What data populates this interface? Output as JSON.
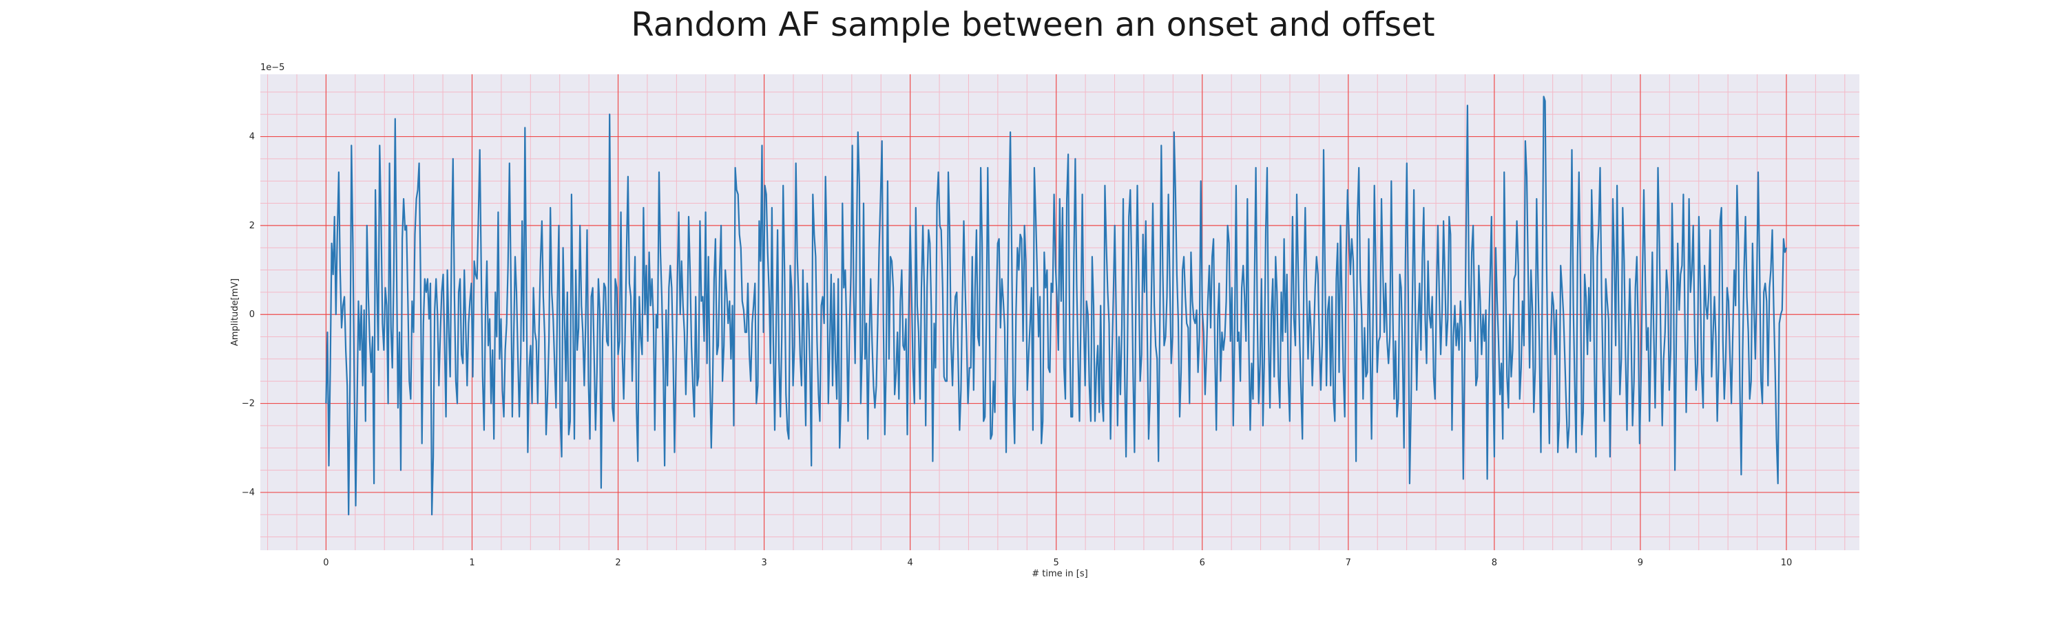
{
  "chart_data": {
    "type": "line",
    "title": "Random AF sample between an onset and offset",
    "xlabel": "# time in [s]",
    "ylabel": "Amplitude[mV]",
    "y_offset_label": "1e−5",
    "xlim": [
      -0.45,
      10.5
    ],
    "ylim": [
      -5.3,
      5.4
    ],
    "xticks": [
      "0",
      "1",
      "2",
      "3",
      "4",
      "5",
      "6",
      "7",
      "8",
      "9",
      "10"
    ],
    "yticks": [
      "−4",
      "−2",
      "0",
      "2",
      "4"
    ],
    "ytick_values": [
      -4,
      -2,
      0,
      2,
      4
    ],
    "grid": true,
    "sample_rate_hz": 100,
    "x_start": 0,
    "y_scale": "1e-5",
    "series": [
      {
        "color": "#2a77b4",
        "values": [
          -2.0,
          -0.4,
          -3.4,
          -1.2,
          1.6,
          0.9,
          2.2,
          0.0,
          1.8,
          3.2,
          1.0,
          -0.3,
          0.2,
          0.4,
          -0.8,
          -1.6,
          -4.5,
          -1.4,
          3.8,
          1.6,
          -1.5,
          -4.3,
          -2.0,
          0.3,
          -0.8,
          0.2,
          -1.6,
          0.1,
          -2.4,
          2.0,
          0.4,
          -0.6,
          -1.3,
          -0.5,
          -3.8,
          2.8,
          0.7,
          -0.8,
          3.8,
          2.2,
          -0.2,
          -0.8,
          0.6,
          0.2,
          -2.0,
          3.4,
          -0.3,
          -1.2,
          0.9,
          4.4,
          1.0,
          -2.1,
          -0.4,
          -3.5,
          1.7,
          2.6,
          1.9,
          2.0,
          0.3,
          -1.5,
          -1.9,
          0.3,
          -0.4,
          1.8,
          2.6,
          2.8,
          3.4,
          0.9,
          -2.9,
          -0.2,
          0.8,
          0.5,
          0.8,
          -0.1,
          0.7,
          -4.5,
          -3.2,
          0.1,
          0.8,
          0.0,
          -1.6,
          -0.4,
          0.5,
          0.9,
          -0.6,
          -2.3,
          1.0,
          -0.4,
          -1.4,
          1.7,
          3.5,
          0.4,
          -1.5,
          -2.0,
          0.5,
          0.8,
          -0.9,
          -1.1,
          1.0,
          -0.3,
          -1.6,
          -0.2,
          0.3,
          0.7,
          -1.4,
          1.2,
          0.9,
          0.8,
          2.2,
          3.7,
          1.0,
          -1.4,
          -2.6,
          0.0,
          1.2,
          -0.7,
          -0.1,
          -2.0,
          -0.8,
          -2.8,
          0.5,
          -0.5,
          2.3,
          -1.0,
          -0.1,
          -1.7,
          -2.3,
          -0.8,
          -0.2,
          1.1,
          3.4,
          0.9,
          -2.3,
          -0.6,
          1.3,
          0.5,
          -1.0,
          -2.3,
          -0.9,
          2.1,
          -0.6,
          4.2,
          0.6,
          -3.1,
          -1.2,
          -0.7,
          -2.0,
          0.6,
          -0.4,
          -0.6,
          -2.0,
          -0.3,
          1.2,
          2.1,
          0.4,
          -0.5,
          -2.7,
          -1.8,
          -0.6,
          2.4,
          0.5,
          -0.1,
          -1.1,
          -2.1,
          0.3,
          2.0,
          -2.3,
          -3.2,
          1.5,
          -0.1,
          -1.5,
          0.5,
          -2.7,
          -2.4,
          2.7,
          0.1,
          -2.8,
          1.0,
          -0.8,
          -0.3,
          2.0,
          0.2,
          -0.4,
          -1.6,
          -0.2,
          1.9,
          -1.5,
          -2.8,
          0.4,
          0.6,
          -0.9,
          -2.6,
          -1.3,
          0.8,
          0.1,
          -3.9,
          -0.6,
          0.7,
          0.6,
          -0.6,
          -0.7,
          4.5,
          0.3,
          -2.1,
          -2.4,
          0.8,
          0.6,
          -0.9,
          -0.6,
          2.3,
          -0.9,
          -1.9,
          -0.4,
          1.4,
          3.1,
          0.7,
          0.4,
          -1.5,
          -0.1,
          1.3,
          -2.1,
          -3.3,
          0.4,
          -0.5,
          -0.9,
          2.4,
          0.0,
          1.1,
          -0.6,
          1.4,
          0.2,
          0.8,
          -0.1,
          -2.6,
          0.0,
          -0.3,
          3.2,
          1.4,
          0.4,
          -1.2,
          -3.4,
          0.1,
          -1.6,
          0.6,
          1.1,
          0.6,
          -0.9,
          -3.1,
          -1.2,
          0.8,
          2.3,
          0.0,
          1.2,
          0.2,
          -0.4,
          -1.8,
          -0.4,
          2.2,
          1.0,
          -0.7,
          -1.6,
          -2.3,
          0.4,
          -1.6,
          -1.4,
          2.1,
          0.3,
          0.4,
          -0.6,
          2.3,
          -1.1,
          1.3,
          -1.3,
          -3.0,
          -1.6,
          0.8,
          1.7,
          -0.9,
          -0.7,
          1.0,
          2.0,
          -1.5,
          -0.7,
          1.0,
          0.5,
          -0.2,
          0.3,
          -1.0,
          0.2,
          -2.5,
          3.3,
          2.8,
          2.7,
          1.8,
          1.5,
          0.3,
          0.1,
          -0.4,
          -0.4,
          0.7,
          -0.9,
          -1.5,
          -0.2,
          0.2,
          0.7,
          -2.0,
          -1.6,
          2.1,
          1.2,
          3.8,
          -0.4,
          2.9,
          2.7,
          1.4,
          0.5,
          -1.1,
          2.4,
          -0.6,
          -2.6,
          -0.3,
          1.9,
          -1.0,
          -2.3,
          -0.5,
          2.9,
          0.9,
          -1.8,
          -2.6,
          -2.8,
          1.1,
          0.6,
          -1.6,
          -0.7,
          3.4,
          1.3,
          0.3,
          -0.9,
          -1.6,
          1.0,
          -1.0,
          -2.5,
          0.7,
          0.0,
          -1.2,
          -3.4,
          2.7,
          1.8,
          1.3,
          -0.6,
          -1.8,
          -2.4,
          0.2,
          0.4,
          -0.2,
          3.1,
          1.4,
          -2.0,
          -0.6,
          0.9,
          -1.6,
          0.7,
          -1.0,
          -1.9,
          0.8,
          -3.0,
          -1.9,
          2.5,
          0.6,
          1.0,
          -0.3,
          -2.4,
          -0.4,
          0.9,
          3.8,
          0.4,
          -1.1,
          1.7,
          4.1,
          2.9,
          -2.0,
          -0.8,
          2.5,
          -1.0,
          -0.2,
          -2.8,
          -0.6,
          0.8,
          -0.6,
          -1.6,
          -2.1,
          -1.6,
          -0.2,
          1.5,
          2.6,
          3.9,
          -0.1,
          -2.7,
          -1.1,
          3.0,
          -1.0,
          1.3,
          1.2,
          0.6,
          -1.8,
          -1.3,
          -0.4,
          -1.9,
          0.3,
          1.0,
          -0.7,
          -0.8,
          -0.1,
          -2.7,
          0.0,
          2.0,
          0.5,
          -1.2,
          -2.0,
          2.4,
          0.2,
          -0.4,
          -1.9,
          0.6,
          2.0,
          0.6,
          -2.5,
          0.6,
          1.9,
          1.6,
          0.1,
          -3.3,
          -0.2,
          -1.2,
          2.5,
          3.2,
          2.0,
          1.9,
          0.6,
          -1.4,
          -1.5,
          -1.5,
          3.2,
          1.9,
          -0.7,
          -1.6,
          -0.3,
          0.4,
          0.5,
          -1.0,
          -2.6,
          -1.7,
          0.4,
          2.1,
          0.6,
          -0.6,
          -2.0,
          -1.2,
          -1.2,
          1.3,
          -1.7,
          0.6,
          1.9,
          -0.5,
          -0.7,
          3.3,
          1.6,
          -2.4,
          -2.3,
          -0.1,
          3.3,
          0.5,
          -2.8,
          -2.7,
          -1.5,
          -2.2,
          0.1,
          1.6,
          1.7,
          -0.3,
          0.8,
          0.3,
          -0.3,
          -3.1,
          -0.6,
          2.4,
          4.1,
          1.3,
          -1.8,
          -2.9,
          0.0,
          1.5,
          1.0,
          1.8,
          1.7,
          -0.6,
          2.0,
          1.2,
          -1.7,
          -0.9,
          -0.2,
          0.6,
          -2.6,
          3.3,
          2.2,
          1.0,
          -0.5,
          0.4,
          -2.9,
          -2.4,
          1.4,
          0.6,
          1.0,
          -1.2,
          -1.3,
          0.7,
          0.5,
          2.7,
          1.1,
          0.4,
          -0.8,
          2.6,
          0.3,
          2.4,
          -1.2,
          -1.9,
          2.6,
          3.6,
          -0.3,
          -2.3,
          -2.3,
          1.2,
          3.5,
          0.7,
          -1.0,
          -2.4,
          0.0,
          2.7,
          -0.2,
          -1.6,
          0.3,
          0.0,
          -1.6,
          -2.4,
          1.3,
          0.2,
          -2.4,
          -1.2,
          -0.7,
          -2.2,
          0.2,
          -1.9,
          -2.4,
          2.9,
          1.6,
          0.5,
          -0.2,
          -2.8,
          -1.0,
          0.4,
          2.0,
          0.0,
          -2.5,
          -0.5,
          -1.8,
          -0.3,
          2.6,
          -1.3,
          -3.2,
          -0.7,
          2.2,
          2.8,
          1.0,
          -1.4,
          -3.1,
          0.5,
          2.9,
          0.7,
          -1.5,
          -0.9,
          1.8,
          0.5,
          2.1,
          -0.3,
          -2.8,
          -1.9,
          0.5,
          2.5,
          0.2,
          -0.7,
          -1.0,
          -3.3,
          0.0,
          3.8,
          1.0,
          -0.7,
          -0.5,
          0.4,
          2.7,
          0.8,
          -1.1,
          -0.5,
          4.1,
          2.8,
          0.9,
          -0.1,
          -2.3,
          -1.3,
          1.0,
          1.3,
          0.4,
          -0.2,
          -0.3,
          -2.0,
          1.4,
          0.3,
          -0.1,
          -0.2,
          0.1,
          -1.3,
          -0.5,
          3.0,
          0.1,
          -0.4,
          -1.8,
          -0.9,
          0.3,
          1.1,
          -0.3,
          1.3,
          1.7,
          -0.9,
          -2.6,
          -0.1,
          0.7,
          -1.5,
          -0.4,
          -0.8,
          -0.5,
          0.3,
          2.0,
          1.6,
          -0.6,
          0.6,
          -2.5,
          -0.3,
          2.9,
          -0.6,
          -0.4,
          -1.5,
          0.6,
          1.1,
          0.4,
          -0.6,
          2.6,
          -0.7,
          -2.6,
          -1.1,
          -1.9,
          0.7,
          3.3,
          0.0,
          -2.0,
          -1.1,
          0.8,
          -2.5,
          -1.0,
          1.9,
          3.3,
          -0.5,
          -2.1,
          0.0,
          0.8,
          -1.4,
          1.3,
          0.5,
          -1.4,
          -2.1,
          0.5,
          -0.6,
          1.7,
          -0.4,
          0.9,
          -1.4,
          -2.4,
          -0.1,
          2.2,
          -0.1,
          -0.7,
          2.7,
          1.0,
          -0.5,
          -1.7,
          -2.8,
          0.7,
          2.4,
          0.4,
          -1.0,
          0.3,
          -0.3,
          -1.6,
          -0.6,
          0.6,
          1.3,
          0.9,
          -0.6,
          -1.7,
          -0.7,
          3.7,
          1.0,
          -1.6,
          0.1,
          0.4,
          -1.6,
          0.4,
          -1.9,
          -2.4,
          0.8,
          1.6,
          -1.3,
          2.0,
          0.3,
          -1.3,
          -2.3,
          1.3,
          2.8,
          1.8,
          0.9,
          1.7,
          1.2,
          -0.2,
          -3.3,
          2.2,
          3.3,
          0.8,
          0.0,
          -1.9,
          -0.3,
          -1.4,
          -1.3,
          1.7,
          -0.7,
          -2.8,
          -0.1,
          2.9,
          1.0,
          -1.3,
          -0.6,
          -0.5,
          2.6,
          1.0,
          -0.4,
          0.7,
          -0.6,
          -1.1,
          -0.5,
          3.0,
          0.2,
          -1.9,
          -0.6,
          -2.3,
          -1.9,
          0.9,
          0.6,
          -0.9,
          -3.0,
          1.2,
          3.4,
          0.4,
          -3.8,
          -2.0,
          0.4,
          2.8,
          0.1,
          -1.7,
          -0.2,
          0.7,
          -0.8,
          1.3,
          2.4,
          -0.1,
          -1.1,
          1.2,
          0.0,
          -0.3,
          0.4,
          -1.4,
          -1.9,
          0.5,
          2.0,
          0.4,
          -0.9,
          0.1,
          2.1,
          0.8,
          -0.7,
          -0.1,
          2.2,
          1.8,
          -2.6,
          -0.5,
          0.2,
          -0.7,
          -0.2,
          -0.8,
          0.3,
          -0.3,
          -3.7,
          -1.0,
          1.9,
          4.7,
          0.7,
          -0.6,
          1.4,
          2.0,
          0.1,
          -1.6,
          -1.4,
          1.1,
          0.3,
          -0.9,
          0.0,
          -0.6,
          0.1,
          -3.7,
          -0.4,
          0.8,
          2.2,
          -1.1,
          -3.2,
          1.5,
          0.3,
          -0.6,
          -1.8,
          -1.1,
          -2.8,
          3.2,
          0.6,
          -1.4,
          -2.1,
          0.0,
          -1.4,
          -0.8,
          0.8,
          0.9,
          2.1,
          1.1,
          -1.9,
          -1.2,
          0.3,
          -0.7,
          3.9,
          3.1,
          0.9,
          -1.2,
          1.0,
          0.1,
          -2.2,
          -1.2,
          2.6,
          0.7,
          -0.8,
          -3.1,
          0.5,
          4.9,
          4.8,
          1.2,
          -1.1,
          -2.9,
          -0.6,
          0.5,
          0.2,
          -0.9,
          0.1,
          -3.1,
          -2.4,
          1.1,
          0.6,
          0.0,
          -1.0,
          -2.1,
          -3.0,
          -2.5,
          0.8,
          3.7,
          0.2,
          -1.5,
          -3.1,
          1.3,
          3.2,
          1.1,
          -2.7,
          -2.2,
          0.9,
          0.4,
          -0.9,
          0.6,
          -0.6,
          2.8,
          1.4,
          -1.3,
          -3.2,
          1.3,
          2.0,
          3.3,
          0.5,
          -1.2,
          -2.4,
          0.8,
          0.3,
          -0.1,
          -3.2,
          -1.2,
          2.6,
          1.3,
          -0.7,
          2.9,
          0.3,
          -1.8,
          -1.0,
          2.4,
          1.2,
          -0.9,
          -2.6,
          -0.5,
          0.8,
          -0.5,
          -2.5,
          -1.5,
          0.6,
          1.3,
          -0.3,
          -2.9,
          -1.4,
          0.9,
          2.8,
          0.8,
          -0.8,
          -0.3,
          -2.4,
          -0.4,
          1.4,
          -0.4,
          -2.1,
          0.0,
          3.3,
          1.6,
          -0.6,
          -2.5,
          -1.0,
          -0.4,
          1.0,
          0.5,
          -1.7,
          -0.8,
          2.5,
          0.7,
          -3.5,
          -0.4,
          1.6,
          0.1,
          0.9,
          1.1,
          2.7,
          0.0,
          -2.2,
          -0.5,
          2.6,
          0.5,
          1.0,
          2.0,
          -0.4,
          -1.7,
          -1.1,
          2.2,
          0.6,
          -1.3,
          -2.1,
          1.1,
          0.2,
          -0.1,
          0.5,
          1.9,
          -1.4,
          -0.5,
          0.4,
          -0.5,
          -2.4,
          -1.1,
          2.1,
          2.4,
          -0.6,
          -1.9,
          -1.0,
          0.6,
          0.3,
          -0.9,
          -2.0,
          -0.5,
          1.0,
          0.2,
          2.9,
          1.6,
          -1.6,
          -3.6,
          -0.8,
          1.0,
          2.2,
          0.4,
          -0.4,
          -1.9,
          -1.5,
          1.6,
          0.2,
          -1.0,
          0.6,
          3.2,
          1.2,
          -1.5,
          -2.0,
          0.5,
          0.7,
          0.3,
          -1.6,
          0.6,
          1.0,
          1.9,
          0.2,
          -1.2,
          -2.8,
          -3.8,
          -0.2,
          0.0,
          0.1,
          1.7,
          1.4,
          1.5
        ]
      }
    ]
  }
}
